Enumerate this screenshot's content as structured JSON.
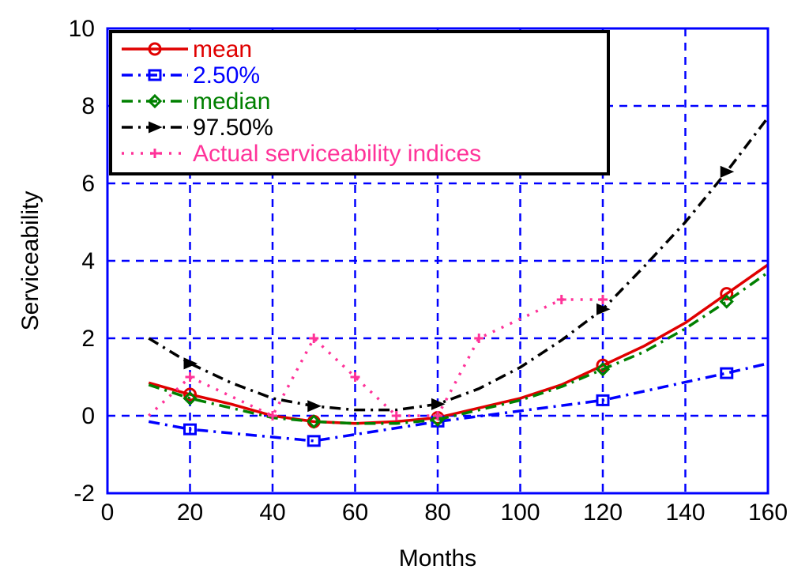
{
  "chart_data": {
    "type": "line",
    "xlabel": "Months",
    "ylabel": "Serviceability",
    "xlim": [
      0,
      160
    ],
    "ylim": [
      -2,
      10
    ],
    "xticks": [
      0,
      20,
      40,
      60,
      80,
      100,
      120,
      140,
      160
    ],
    "yticks": [
      -2,
      0,
      2,
      4,
      6,
      8,
      10
    ],
    "grid": true,
    "grid_color": "#0000ff",
    "legend_position": "top-left",
    "series": [
      {
        "name": "mean",
        "color": "#e00000",
        "dash": "solid",
        "marker": "circle",
        "x": [
          10,
          20,
          30,
          40,
          50,
          60,
          70,
          80,
          90,
          100,
          110,
          120,
          130,
          140,
          150,
          160
        ],
        "y": [
          0.85,
          0.55,
          0.3,
          0.0,
          -0.15,
          -0.2,
          -0.15,
          -0.05,
          0.2,
          0.45,
          0.8,
          1.3,
          1.8,
          2.4,
          3.15,
          3.9
        ],
        "marker_x": [
          20,
          50,
          80,
          120,
          150
        ]
      },
      {
        "name": "2.50%",
        "color": "#0000ff",
        "dash": "dashdot",
        "marker": "square",
        "x": [
          10,
          20,
          50,
          80,
          120,
          150,
          160
        ],
        "y": [
          -0.15,
          -0.35,
          -0.65,
          -0.15,
          0.4,
          1.1,
          1.35
        ],
        "marker_x": [
          20,
          50,
          80,
          120,
          150
        ]
      },
      {
        "name": "median",
        "color": "#008000",
        "dash": "dashdot",
        "marker": "diamond",
        "x": [
          10,
          20,
          30,
          40,
          50,
          60,
          70,
          80,
          90,
          100,
          110,
          120,
          130,
          140,
          150,
          160
        ],
        "y": [
          0.8,
          0.45,
          0.2,
          -0.05,
          -0.15,
          -0.2,
          -0.2,
          -0.1,
          0.15,
          0.4,
          0.75,
          1.2,
          1.65,
          2.25,
          2.95,
          3.7
        ],
        "marker_x": [
          20,
          50,
          80,
          120,
          150
        ]
      },
      {
        "name": "97.50%",
        "color": "#000000",
        "dash": "dashdot",
        "marker": "triangle",
        "x": [
          10,
          20,
          30,
          40,
          50,
          60,
          70,
          80,
          90,
          100,
          110,
          120,
          130,
          140,
          150,
          160
        ],
        "y": [
          2.0,
          1.35,
          0.85,
          0.45,
          0.25,
          0.15,
          0.15,
          0.3,
          0.7,
          1.25,
          1.95,
          2.75,
          3.85,
          5.0,
          6.3,
          7.7
        ],
        "marker_x": [
          20,
          50,
          80,
          120,
          150
        ]
      },
      {
        "name": "Actual serviceability indices",
        "color": "#ff3399",
        "dash": "dotted",
        "marker": "plus",
        "x": [
          10,
          20,
          40,
          50,
          60,
          70,
          80,
          90,
          110,
          120
        ],
        "y": [
          0.0,
          1.0,
          0.0,
          2.0,
          1.0,
          0.0,
          0.0,
          2.0,
          3.0,
          3.0
        ],
        "marker_x": [
          20,
          40,
          50,
          60,
          70,
          80,
          90,
          110,
          120
        ]
      }
    ]
  }
}
